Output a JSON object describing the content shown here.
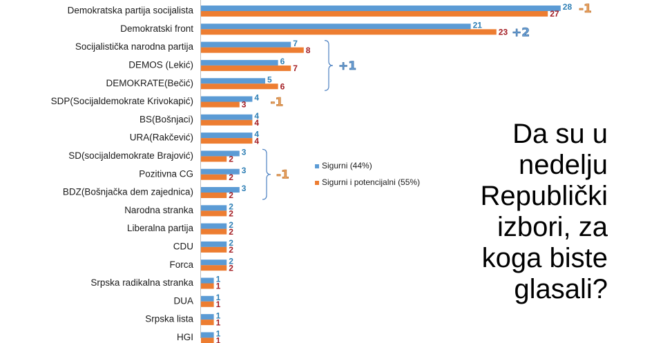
{
  "chart_data": {
    "type": "bar",
    "orientation": "horizontal",
    "categories": [
      "Demokratska partija socijalista",
      "Demokratski front",
      "Socijalistička narodna partija",
      "DEMOS (Lekić)",
      "DEMOKRATE(Bečić)",
      "SDP(Socijaldemokrate Krivokapić)",
      "BS(Bošnjaci)",
      "URA(Rakčević)",
      "SD(socijaldemokrate Brajović)",
      "Pozitivna CG",
      "BDZ(Bošnjačka dem zajednica)",
      "Narodna stranka",
      "Liberalna partija",
      "CDU",
      "Forca",
      "Srpska radikalna stranka",
      "DUA",
      "Srpska lista",
      "HGI"
    ],
    "series": [
      {
        "name": "Sigurni (44%)",
        "color": "#5b9bd5",
        "label_color": "#2e7fb5",
        "values": [
          28,
          21,
          7,
          6,
          5,
          4,
          4,
          4,
          3,
          3,
          3,
          2,
          2,
          2,
          2,
          1,
          1,
          1,
          1
        ]
      },
      {
        "name": "Sigurni i potencijalni (55%)",
        "color": "#ed7d31",
        "label_color": "#a31c22",
        "values": [
          27,
          23,
          8,
          7,
          6,
          3,
          4,
          4,
          2,
          2,
          2,
          2,
          2,
          2,
          2,
          1,
          1,
          1,
          1
        ]
      }
    ],
    "annotations": [
      {
        "text": "-1",
        "target": "Demokratska partija socijalista",
        "tone": "negative"
      },
      {
        "text": "+2",
        "target": "Demokratski front",
        "tone": "positive"
      },
      {
        "text": "+1",
        "target": [
          "Socijalistička narodna partija",
          "DEMOS (Lekić)",
          "DEMOKRATE(Bečić)"
        ],
        "tone": "positive",
        "bracket": true
      },
      {
        "text": "-1",
        "target": "SDP(Socijaldemokrate Krivokapić)",
        "tone": "negative"
      },
      {
        "text": "-1",
        "target": [
          "SD(socijaldemokrate Brajović)",
          "Pozitivna CG",
          "BDZ(Bošnjačka dem zajednica)"
        ],
        "tone": "negative",
        "bracket": true
      }
    ],
    "legend_position": "right-center",
    "grid": false,
    "title": "",
    "xlabel": "",
    "ylabel": ""
  },
  "question": "Da su u nedelju Republički izbori, za koga biste glasali?"
}
